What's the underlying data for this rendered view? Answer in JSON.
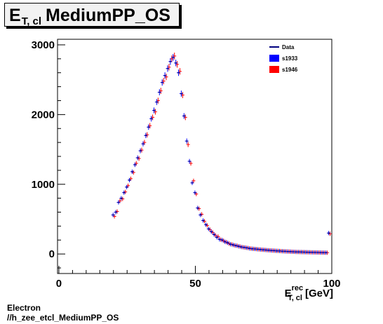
{
  "title": {
    "main": "E",
    "sub": "T, cl",
    "rest": "MediumPP_OS"
  },
  "footer": {
    "line1": "Electron",
    "line2": "//h_zee_etcl_MediumPP_OS"
  },
  "chart_data": {
    "type": "scatter",
    "title": "E_{T, cl} MediumPP_OS",
    "xlabel": {
      "main": "E",
      "sup": "rec",
      "sub": "T, cl",
      "unit": "[GeV]"
    },
    "ylabel": "",
    "xlim": [
      -0.5,
      100
    ],
    "ylim": [
      -280,
      3080
    ],
    "xticks": [
      0,
      50,
      100
    ],
    "yticks": [
      0,
      1000,
      2000,
      3000
    ],
    "grid": false,
    "legend": {
      "placement": "top-right",
      "entries": [
        {
          "label": "Data",
          "style": "line",
          "color": "#00007f"
        },
        {
          "label": "s1933",
          "style": "box",
          "color": "#0000ff"
        },
        {
          "label": "s1946",
          "style": "box",
          "color": "#ff0000"
        }
      ]
    },
    "x": [
      20,
      21,
      22,
      23,
      24,
      25,
      26,
      27,
      28,
      29,
      30,
      31,
      32,
      33,
      34,
      35,
      36,
      37,
      38,
      39,
      40,
      41,
      42,
      43,
      44,
      45,
      46,
      47,
      48,
      49,
      50,
      51,
      52,
      53,
      54,
      55,
      56,
      57,
      58,
      59,
      60,
      61,
      62,
      63,
      64,
      65,
      66,
      67,
      68,
      69,
      70,
      71,
      72,
      73,
      74,
      75,
      76,
      77,
      78,
      79,
      80,
      81,
      82,
      83,
      84,
      85,
      86,
      87,
      88,
      89,
      90,
      91,
      92,
      93,
      94,
      95,
      96,
      97,
      98,
      99
    ],
    "series": [
      {
        "name": "s1933",
        "color": "#0000ff",
        "values": [
          560,
          600,
          740,
          800,
          880,
          960,
          1060,
          1180,
          1280,
          1380,
          1480,
          1580,
          1700,
          1820,
          1940,
          2060,
          2180,
          2320,
          2460,
          2560,
          2660,
          2760,
          2820,
          2740,
          2600,
          2300,
          1980,
          1620,
          1330,
          1020,
          880,
          660,
          560,
          480,
          420,
          360,
          320,
          280,
          240,
          210,
          200,
          175,
          160,
          140,
          130,
          120,
          110,
          100,
          95,
          88,
          80,
          75,
          72,
          68,
          64,
          60,
          57,
          54,
          50,
          48,
          45,
          43,
          40,
          38,
          36,
          34,
          32,
          30,
          29,
          28,
          27,
          26,
          25,
          24,
          23,
          22,
          21,
          20,
          19,
          300
        ]
      },
      {
        "name": "s1946",
        "color": "#ff0000",
        "values": [
          540,
          610,
          760,
          790,
          890,
          980,
          1080,
          1170,
          1300,
          1370,
          1490,
          1600,
          1710,
          1840,
          1960,
          2040,
          2200,
          2340,
          2480,
          2540,
          2680,
          2800,
          2840,
          2720,
          2620,
          2280,
          1960,
          1570,
          1300,
          1050,
          860,
          650,
          570,
          470,
          410,
          350,
          310,
          270,
          250,
          205,
          190,
          170,
          150,
          138,
          125,
          118,
          108,
          98,
          92,
          86,
          78,
          74,
          70,
          66,
          62,
          59,
          55,
          52,
          49,
          46,
          44,
          41,
          39,
          37,
          35,
          33,
          31,
          29,
          28,
          27,
          26,
          25,
          24,
          23,
          22,
          21,
          20,
          19,
          18,
          290
        ]
      }
    ]
  }
}
